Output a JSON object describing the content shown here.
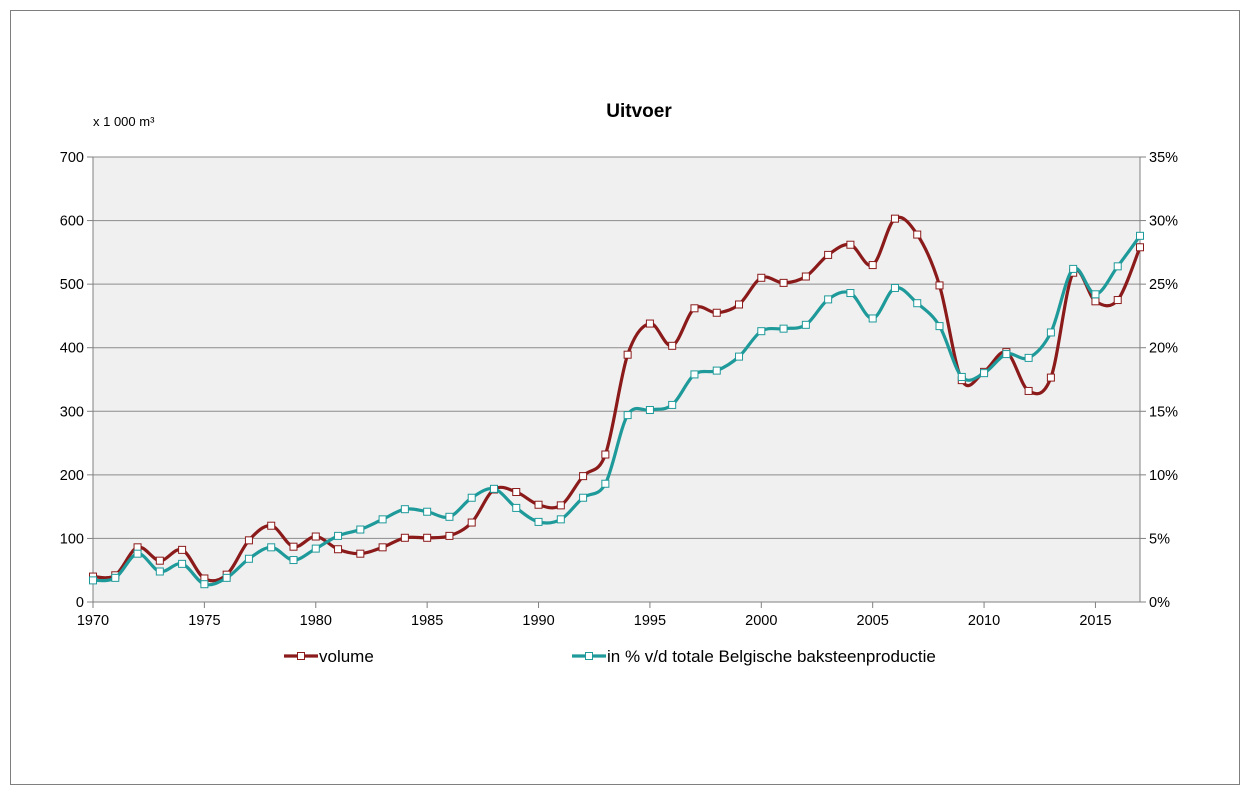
{
  "chart_data": {
    "type": "line",
    "title": "Uitvoer",
    "y_left_unit": "x 1 000 m³",
    "x_range": [
      1970,
      2017
    ],
    "x_ticks": [
      1970,
      1975,
      1980,
      1985,
      1990,
      1995,
      2000,
      2005,
      2010,
      2015
    ],
    "ylim_left": [
      0,
      700
    ],
    "y_left_ticks": [
      "0",
      "100",
      "200",
      "300",
      "400",
      "500",
      "600",
      "700"
    ],
    "ylim_right": [
      0,
      35
    ],
    "y_right_ticks": [
      "0%",
      "5%",
      "10%",
      "15%",
      "20%",
      "25%",
      "30%",
      "35%"
    ],
    "grid": "horizontal",
    "legend_position": "bottom",
    "x": [
      1970,
      1971,
      1972,
      1973,
      1974,
      1975,
      1976,
      1977,
      1978,
      1979,
      1980,
      1981,
      1982,
      1983,
      1984,
      1985,
      1986,
      1987,
      1988,
      1989,
      1990,
      1991,
      1992,
      1993,
      1994,
      1995,
      1996,
      1997,
      1998,
      1999,
      2000,
      2001,
      2002,
      2003,
      2004,
      2005,
      2006,
      2007,
      2008,
      2009,
      2010,
      2011,
      2012,
      2013,
      2014,
      2015,
      2016,
      2017
    ],
    "series": [
      {
        "name": "volume",
        "axis": "left",
        "color": "#8b1a1a",
        "values": [
          40,
          42,
          86,
          65,
          82,
          37,
          43,
          97,
          120,
          87,
          103,
          83,
          76,
          86,
          101,
          101,
          104,
          125,
          177,
          173,
          153,
          152,
          198,
          232,
          389,
          438,
          403,
          462,
          455,
          468,
          510,
          502,
          512,
          546,
          562,
          530,
          603,
          578,
          498,
          349,
          362,
          393,
          332,
          353,
          518,
          473,
          475,
          558
        ]
      },
      {
        "name": "in % v/d totale Belgische baksteenproductie",
        "axis": "right",
        "color": "#1f9a9a",
        "values": [
          1.7,
          1.9,
          3.8,
          2.4,
          3.0,
          1.4,
          1.9,
          3.4,
          4.3,
          3.3,
          4.2,
          5.2,
          5.7,
          6.5,
          7.3,
          7.1,
          6.7,
          8.2,
          8.9,
          7.4,
          6.3,
          6.5,
          8.2,
          9.3,
          14.7,
          15.1,
          15.5,
          17.9,
          18.2,
          19.3,
          21.3,
          21.5,
          21.8,
          23.8,
          24.3,
          22.3,
          24.7,
          23.5,
          21.7,
          17.7,
          18.0,
          19.5,
          19.2,
          21.2,
          26.2,
          24.2,
          26.4,
          28.8
        ]
      }
    ]
  }
}
